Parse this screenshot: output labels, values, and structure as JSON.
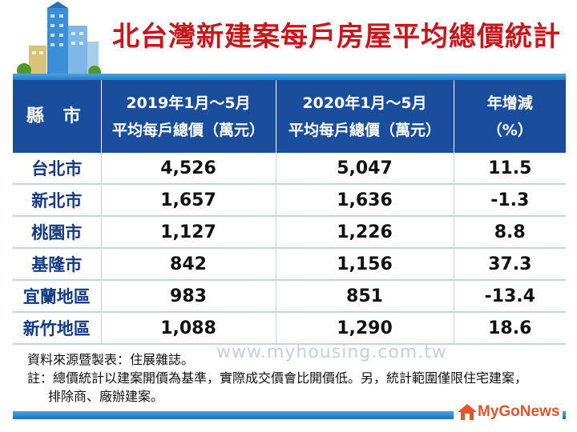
{
  "title": "北台灣新建案每戶房屋平均總價統計",
  "table": {
    "headers": [
      {
        "lines": [
          "縣 市"
        ]
      },
      {
        "lines": [
          "2019年1月～5月",
          "平均每戶總價（萬元）"
        ]
      },
      {
        "lines": [
          "2020年1月～5月",
          "平均每戶總價（萬元）"
        ]
      },
      {
        "lines": [
          "年增減",
          "（%）"
        ]
      }
    ],
    "rows": [
      [
        "台北市",
        "4,526",
        "5,047",
        "11.5"
      ],
      [
        "新北市",
        "1,657",
        "1,636",
        "-1.3"
      ],
      [
        "桃園市",
        "1,127",
        "1,226",
        "8.8"
      ],
      [
        "基隆市",
        "842",
        "1,156",
        "37.3"
      ],
      [
        "宜蘭地區",
        "983",
        "851",
        "-13.4"
      ],
      [
        "新竹地區",
        "1,088",
        "1,290",
        "18.6"
      ]
    ]
  },
  "watermark": "www.myhousing.com.tw",
  "notes": {
    "source": "資料來源暨製表：住展雜誌。",
    "note_line1": "註：總價統計以建案開價為基準，實際成交價會比開價低。另，統計範圍僅限住宅建案，",
    "note_line2": "排除商、廠辦建案。"
  },
  "logo": {
    "text": "MyGoNews",
    "icon": "house-logo-icon"
  },
  "colors": {
    "title": "#c8161d",
    "header_bg": "#1a4e9c",
    "bar": "#1d6fc0",
    "logo": "#e4552b"
  }
}
